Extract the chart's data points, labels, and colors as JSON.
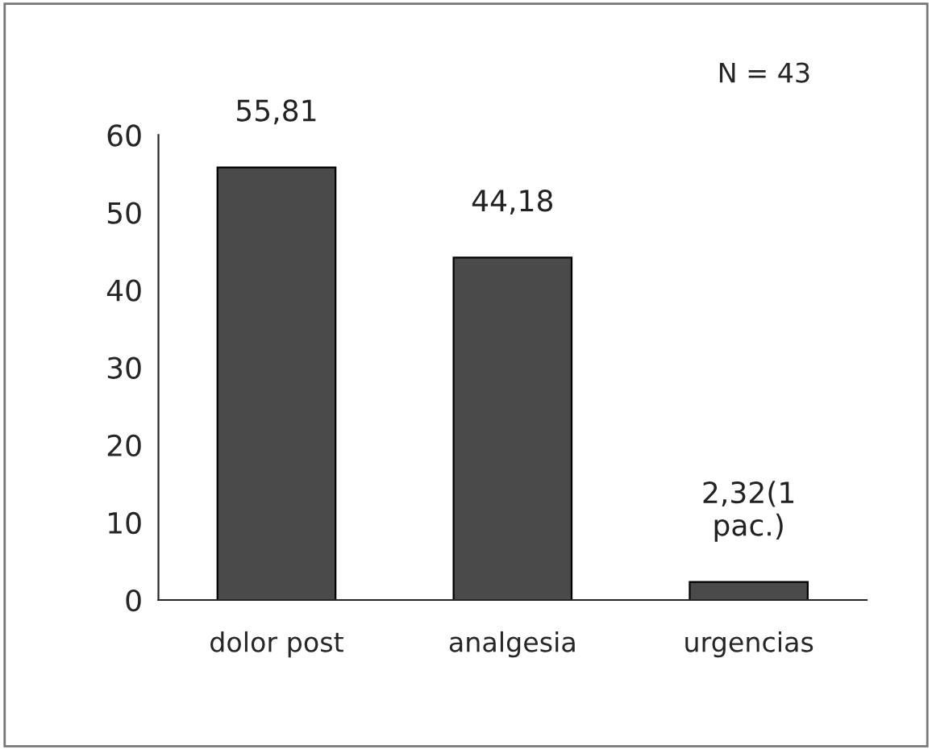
{
  "chart_data": {
    "type": "bar",
    "categories": [
      "dolor post",
      "analgesia",
      "urgencias"
    ],
    "values": [
      55.81,
      44.18,
      2.32
    ],
    "value_labels": [
      "55,81",
      "44,18",
      "2,32(1\npac.)"
    ],
    "color": "#4a4a4a",
    "ylim": [
      0,
      60
    ],
    "yticks": [
      0,
      10,
      20,
      30,
      40,
      50,
      60
    ],
    "annotations": [
      "N = 43"
    ],
    "grid": false
  }
}
